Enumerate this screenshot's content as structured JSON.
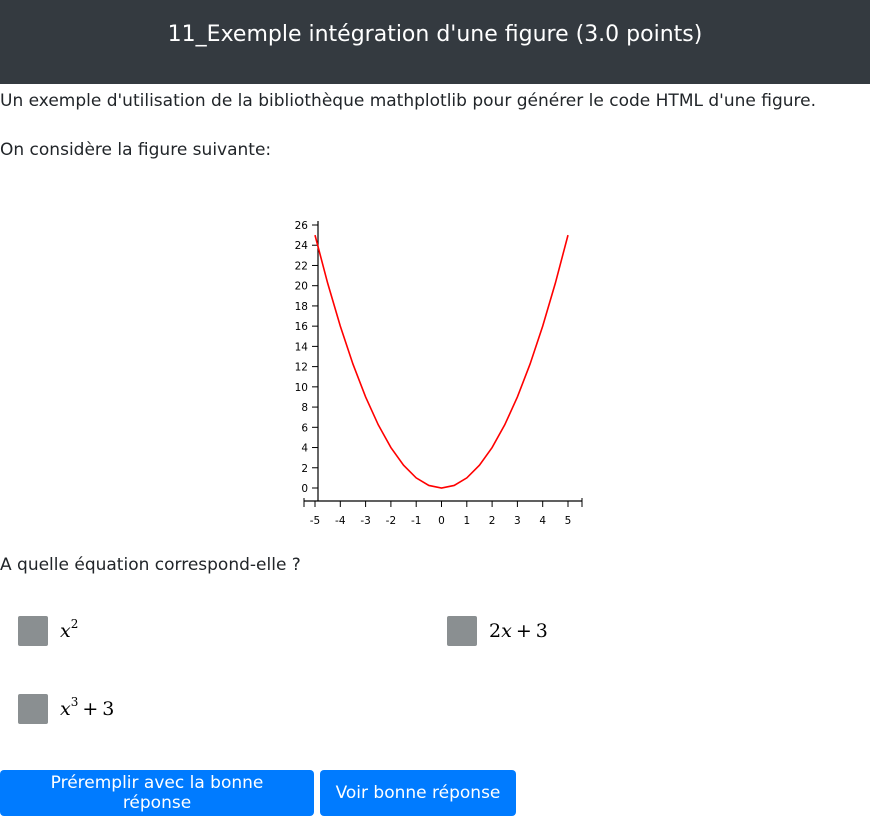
{
  "header": {
    "title": "11_Exemple intégration d'une figure (3.0 points)"
  },
  "content": {
    "intro": "Un exemple d'utilisation de la bibliothèque mathplotlib pour générer le code HTML d'une figure.",
    "consider": "On considère la figure suivante:",
    "question": "A quelle équation correspond-elle ?"
  },
  "choices": [
    {
      "base": "x",
      "exp": "2",
      "rest": ""
    },
    {
      "coef": "2",
      "var": "x",
      "op": "+",
      "const": "3"
    },
    {
      "base": "x",
      "exp": "3",
      "op": "+",
      "const": "3"
    }
  ],
  "buttons": {
    "prefill": "Préremplir avec la bonne réponse",
    "show": "Voir bonne réponse"
  },
  "colors": {
    "header_bg": "#343a40",
    "button_bg": "#007bff",
    "checkbox": "#8a8f91",
    "curve": "#ff0000"
  },
  "chart_data": {
    "type": "line",
    "title": "",
    "xlabel": "",
    "ylabel": "",
    "xlim": [
      -5,
      5
    ],
    "ylim": [
      0,
      26
    ],
    "x_ticks": [
      -5,
      -4,
      -3,
      -2,
      -1,
      0,
      1,
      2,
      3,
      4,
      5
    ],
    "y_ticks": [
      0,
      2,
      4,
      6,
      8,
      10,
      12,
      14,
      16,
      18,
      20,
      22,
      24,
      26
    ],
    "series": [
      {
        "color": "#ff0000",
        "x": [
          -5,
          -4.5,
          -4,
          -3.5,
          -3,
          -2.5,
          -2,
          -1.5,
          -1,
          -0.5,
          0,
          0.5,
          1,
          1.5,
          2,
          2.5,
          3,
          3.5,
          4,
          4.5,
          5
        ],
        "y": [
          25,
          20.25,
          16,
          12.25,
          9,
          6.25,
          4,
          2.25,
          1,
          0.25,
          0,
          0.25,
          1,
          2.25,
          4,
          6.25,
          9,
          12.25,
          16,
          20.25,
          25
        ]
      }
    ]
  }
}
